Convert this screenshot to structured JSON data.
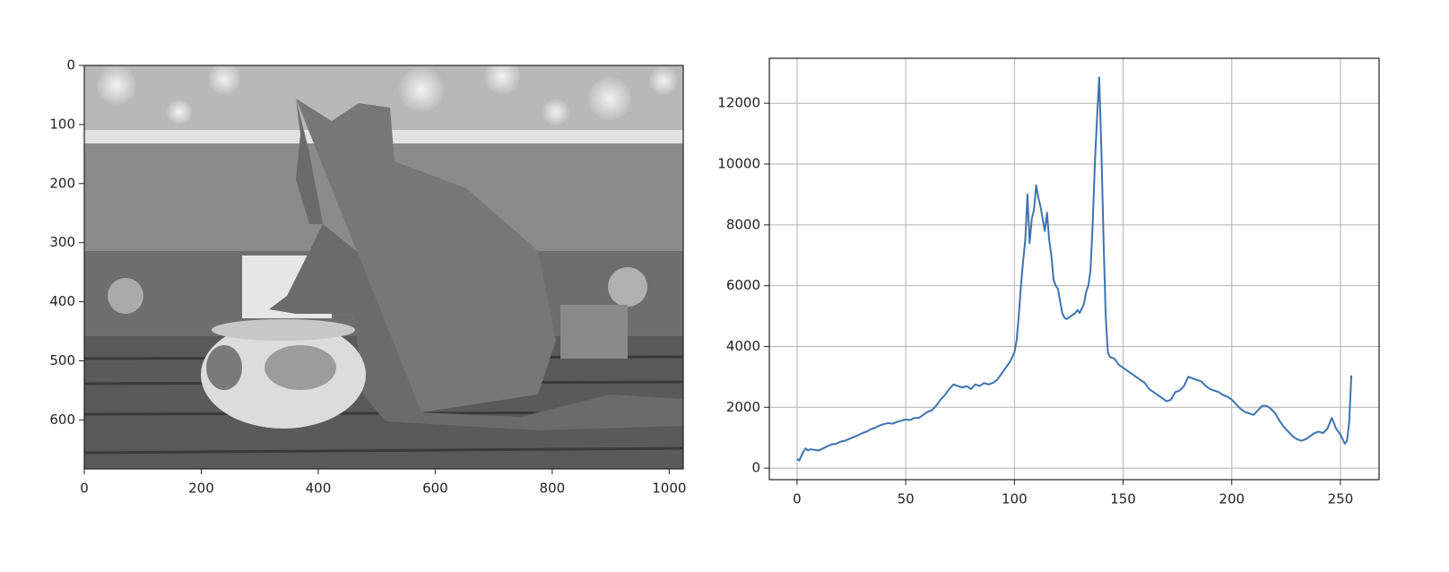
{
  "chart_data": [
    {
      "type": "image",
      "xlim": [
        0,
        1024
      ],
      "ylim": [
        683,
        0
      ],
      "xticks": [
        0,
        200,
        400,
        600,
        800,
        1000
      ],
      "yticks": [
        0,
        100,
        200,
        300,
        400,
        500,
        600
      ],
      "grid": false
    },
    {
      "type": "line",
      "color": "#3d73b0",
      "grid": true,
      "xlim": [
        -12.75,
        267.75
      ],
      "ylim": [
        -380,
        13480
      ],
      "xticks": [
        0,
        50,
        100,
        150,
        200,
        250
      ],
      "yticks": [
        0,
        2000,
        4000,
        6000,
        8000,
        10000,
        12000
      ],
      "x": [
        0,
        1,
        2,
        3,
        4,
        5,
        6,
        8,
        10,
        12,
        14,
        16,
        18,
        20,
        22,
        24,
        26,
        28,
        30,
        32,
        34,
        36,
        38,
        40,
        42,
        44,
        46,
        48,
        50,
        52,
        54,
        56,
        58,
        60,
        62,
        64,
        66,
        68,
        70,
        72,
        74,
        76,
        78,
        80,
        82,
        84,
        86,
        88,
        90,
        92,
        94,
        96,
        98,
        100,
        101,
        102,
        103,
        104,
        105,
        106,
        107,
        108,
        109,
        110,
        111,
        112,
        113,
        114,
        115,
        116,
        117,
        118,
        119,
        120,
        121,
        122,
        123,
        124,
        125,
        126,
        127,
        128,
        129,
        130,
        131,
        132,
        133,
        134,
        135,
        136,
        137,
        138,
        139,
        140,
        141,
        142,
        143,
        144,
        146,
        148,
        150,
        152,
        154,
        156,
        158,
        160,
        162,
        164,
        166,
        168,
        170,
        172,
        174,
        176,
        178,
        180,
        182,
        184,
        186,
        188,
        190,
        192,
        194,
        196,
        198,
        200,
        202,
        204,
        206,
        208,
        210,
        212,
        214,
        216,
        218,
        220,
        222,
        224,
        226,
        228,
        230,
        232,
        234,
        236,
        238,
        240,
        242,
        244,
        246,
        248,
        250,
        252,
        253,
        254,
        255
      ],
      "values": [
        300,
        250,
        400,
        550,
        650,
        580,
        620,
        600,
        580,
        650,
        720,
        780,
        800,
        870,
        900,
        960,
        1020,
        1080,
        1150,
        1200,
        1280,
        1330,
        1400,
        1450,
        1480,
        1460,
        1520,
        1560,
        1600,
        1580,
        1650,
        1650,
        1750,
        1850,
        1900,
        2050,
        2250,
        2400,
        2600,
        2750,
        2700,
        2650,
        2700,
        2600,
        2750,
        2700,
        2800,
        2750,
        2800,
        2900,
        3100,
        3300,
        3500,
        3800,
        4200,
        5000,
        6000,
        6800,
        7500,
        9000,
        7400,
        8200,
        8500,
        9300,
        8900,
        8600,
        8200,
        7800,
        8400,
        7500,
        7000,
        6200,
        6000,
        5900,
        5500,
        5100,
        4950,
        4900,
        4950,
        5000,
        5050,
        5100,
        5200,
        5100,
        5250,
        5400,
        5800,
        6000,
        6500,
        8000,
        10000,
        11500,
        12850,
        10500,
        7500,
        5000,
        3800,
        3650,
        3600,
        3400,
        3300,
        3200,
        3100,
        3000,
        2900,
        2800,
        2600,
        2500,
        2400,
        2300,
        2200,
        2250,
        2500,
        2550,
        2700,
        3000,
        2950,
        2900,
        2850,
        2700,
        2600,
        2550,
        2500,
        2400,
        2350,
        2250,
        2100,
        1950,
        1850,
        1800,
        1750,
        1900,
        2050,
        2050,
        1950,
        1800,
        1550,
        1350,
        1200,
        1050,
        950,
        900,
        950,
        1050,
        1150,
        1200,
        1150,
        1300,
        1650,
        1300,
        1100,
        800,
        900,
        1500,
        3050
      ]
    }
  ]
}
